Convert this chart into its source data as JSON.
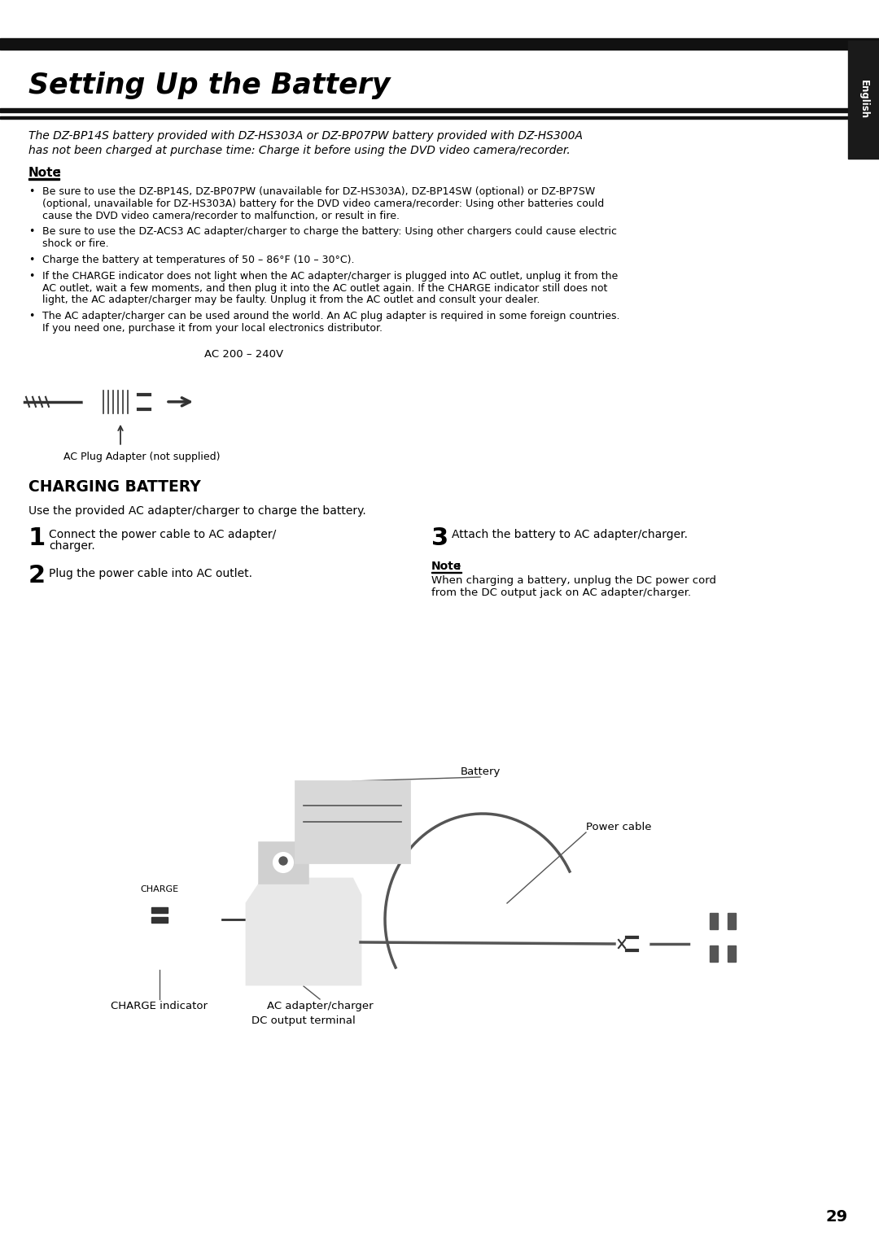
{
  "title": "Setting Up the Battery",
  "page_number": "29",
  "tab_text": "English",
  "subtitle_line1": "The DZ-BP14S battery provided with DZ-HS303A or DZ-BP07PW battery provided with DZ-HS300A",
  "subtitle_line2": "has not been charged at purchase time: Charge it before using the DVD video camera/recorder.",
  "note_label": "Note",
  "note_colon": ":",
  "note_bullets": [
    "Be sure to use the DZ-BP14S, DZ-BP07PW (unavailable for DZ-HS303A), DZ-BP14SW (optional) or DZ-BP7SW\n(optional, unavailable for DZ-HS303A) battery for the DVD video camera/recorder: Using other batteries could\ncause the DVD video camera/recorder to malfunction, or result in fire.",
    "Be sure to use the DZ-ACS3 AC adapter/charger to charge the battery: Using other chargers could cause electric\nshock or fire.",
    "Charge the battery at temperatures of 50 – 86°F (10 – 30°C).",
    "If the CHARGE indicator does not light when the AC adapter/charger is plugged into AC outlet, unplug it from the\nAC outlet, wait a few moments, and then plug it into the AC outlet again. If the CHARGE indicator still does not\nlight, the AC adapter/charger may be faulty. Unplug it from the AC outlet and consult your dealer.",
    "The AC adapter/charger can be used around the world. An AC plug adapter is required in some foreign countries.\nIf you need one, purchase it from your local electronics distributor."
  ],
  "ac_label": "AC 200 – 240V",
  "plug_label": "AC Plug Adapter (not supplied)",
  "charging_title": "CHARGING BATTERY",
  "charging_intro": "Use the provided AC adapter/charger to charge the battery.",
  "step1_num": "1",
  "step1_text": "Connect the power cable to AC adapter/\ncharger.",
  "step2_num": "2",
  "step2_text": "Plug the power cable into AC outlet.",
  "step3_num": "3",
  "step3_text": "Attach the battery to AC adapter/charger.",
  "step3_note_label": "Note",
  "step3_note_text": "When charging a battery, unplug the DC power cord\nfrom the DC output jack on AC adapter/charger.",
  "diag_battery": "Battery",
  "diag_power_cable": "Power cable",
  "diag_charge_indicator": "CHARGE indicator",
  "diag_ac_adapter": "AC adapter/charger",
  "diag_dc_output": "DC output terminal",
  "diag_charge_text": "CHARGE",
  "bg_color": "#ffffff",
  "text_color": "#000000",
  "tab_bg_color": "#1a1a1a"
}
